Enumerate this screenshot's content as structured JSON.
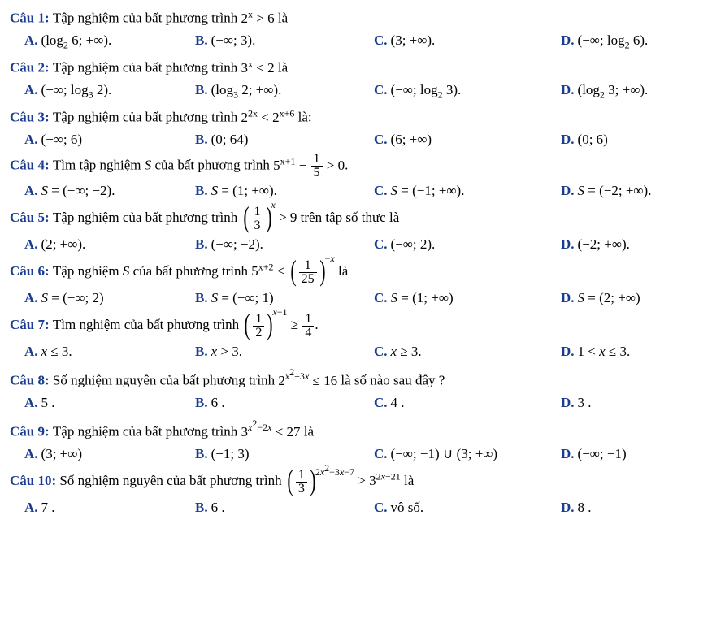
{
  "text_color": "#000000",
  "label_color": "#1a3d8f",
  "background_color": "#ffffff",
  "font_family": "Times New Roman",
  "base_fontsize": 17,
  "questions": [
    {
      "label": "Câu 1:",
      "stem_pre": "Tập nghiệm của bất phương trình ",
      "stem_math": "2<sup>x</sup> > 6",
      "stem_post": " là",
      "A": "(log<sub>2</sub> 6; +∞).",
      "B": "(−∞; 3).",
      "C": "(3; +∞).",
      "D": "(−∞; log<sub>2</sub> 6)."
    },
    {
      "label": "Câu 2:",
      "stem_pre": "Tập nghiệm của bất phương trình ",
      "stem_math": "3<sup>x</sup> < 2",
      "stem_post": " là",
      "A": "(−∞; log<sub>3</sub> 2).",
      "B": "(log<sub>3</sub> 2; +∞).",
      "C": "(−∞; log<sub>2</sub> 3).",
      "D": "(log<sub>2</sub> 3; +∞)."
    },
    {
      "label": "Câu 3:",
      "stem_pre": "Tập nghiệm của bất phương trình ",
      "stem_math": "2<sup>2x</sup> < 2<sup>x+6</sup>",
      "stem_post": " là:",
      "A": "(−∞; 6)",
      "B": "(0; 64)",
      "C": "(6; +∞)",
      "D": "(0; 6)"
    },
    {
      "label": "Câu 4:",
      "stem_pre": "Tìm tập nghiệm <i>S</i> của bất phương trình ",
      "stem_math": "5<sup>x+1</sup> − <span class='frac'><span class='num'>1</span><span class='den'>5</span></span> > 0",
      "stem_post": ".",
      "A": "<i>S</i> = (−∞; −2).",
      "B": "<i>S</i> = (1; +∞).",
      "C": "<i>S</i> = (−1; +∞).",
      "D": "<i>S</i> = (−2; +∞)."
    },
    {
      "label": "Câu 5:",
      "stem_pre": "Tập nghiệm của bất phương trình ",
      "stem_math": "<span class='paren-frac'><span class='lp'>(</span><span class='frac'><span class='num'>1</span><span class='den'>3</span></span><span class='rp'>)</span></span><span class='sup-outer'><i>x</i></span> > 9",
      "stem_post": " trên tập số thực là",
      "A": "(2; +∞).",
      "B": "(−∞; −2).",
      "C": "(−∞; 2).",
      "D": "(−2; +∞)."
    },
    {
      "label": "Câu 6:",
      "stem_pre": "Tập nghiệm <i>S</i> của bất phương trình ",
      "stem_math": "5<sup>x+2</sup> < <span class='paren-frac'><span class='lp'>(</span><span class='frac'><span class='num'>1</span><span class='den'>25</span></span><span class='rp'>)</span></span><span class='sup-outer'>−<i>x</i></span>",
      "stem_post": " là",
      "A": "<i>S</i> = (−∞; 2)",
      "B": "<i>S</i> = (−∞; 1)",
      "C": "<i>S</i> = (1; +∞)",
      "D": "<i>S</i> = (2; +∞)"
    },
    {
      "label": "Câu 7:",
      "stem_pre": "Tìm nghiệm của bất phương trình ",
      "stem_math": "<span class='paren-frac'><span class='lp'>(</span><span class='frac'><span class='num'>1</span><span class='den'>2</span></span><span class='rp'>)</span></span><span class='sup-outer'><i>x</i>−1</span> ≥ <span class='frac'><span class='num'>1</span><span class='den'>4</span></span>",
      "stem_post": ".",
      "A": "<i>x</i> ≤ 3.",
      "B": "<i>x</i> > 3.",
      "C": "<i>x</i> ≥ 3.",
      "D": "1 < <i>x</i> ≤ 3."
    },
    {
      "label": "Câu 8:",
      "stem_pre": "Số nghiệm nguyên của bất phương trình ",
      "stem_math": "2<sup><i>x</i><sup>2</sup>+3<i>x</i></sup> ≤ 16",
      "stem_post": " là số nào sau đây ?",
      "A": "5 .",
      "B": "6 .",
      "C": "4 .",
      "D": "3 ."
    },
    {
      "label": "Câu 9:",
      "stem_pre": "Tập nghiệm của bất phương trình ",
      "stem_math": "3<sup><i>x</i><sup>2</sup>−2<i>x</i></sup> < 27",
      "stem_post": " là",
      "A": "(3; +∞)",
      "B": "(−1; 3)",
      "C": "(−∞; −1) ∪ (3; +∞)",
      "D": "(−∞; −1)"
    },
    {
      "label": "Câu 10:",
      "stem_pre": "Số nghiệm nguyên của bất phương trình ",
      "stem_math": "<span class='paren-frac'><span class='lp'>(</span><span class='frac'><span class='num'>1</span><span class='den'>3</span></span><span class='rp'>)</span></span><span class='sup-outer'>2<i>x</i><sup>2</sup>−3<i>x</i>−7</span> > 3<sup>2<i>x</i>−21</sup>",
      "stem_post": " là",
      "A": "7 .",
      "B": "6 .",
      "C": "vô số.",
      "D": "8 ."
    }
  ],
  "answer_labels": {
    "A": "A.",
    "B": "B.",
    "C": "C.",
    "D": "D."
  }
}
